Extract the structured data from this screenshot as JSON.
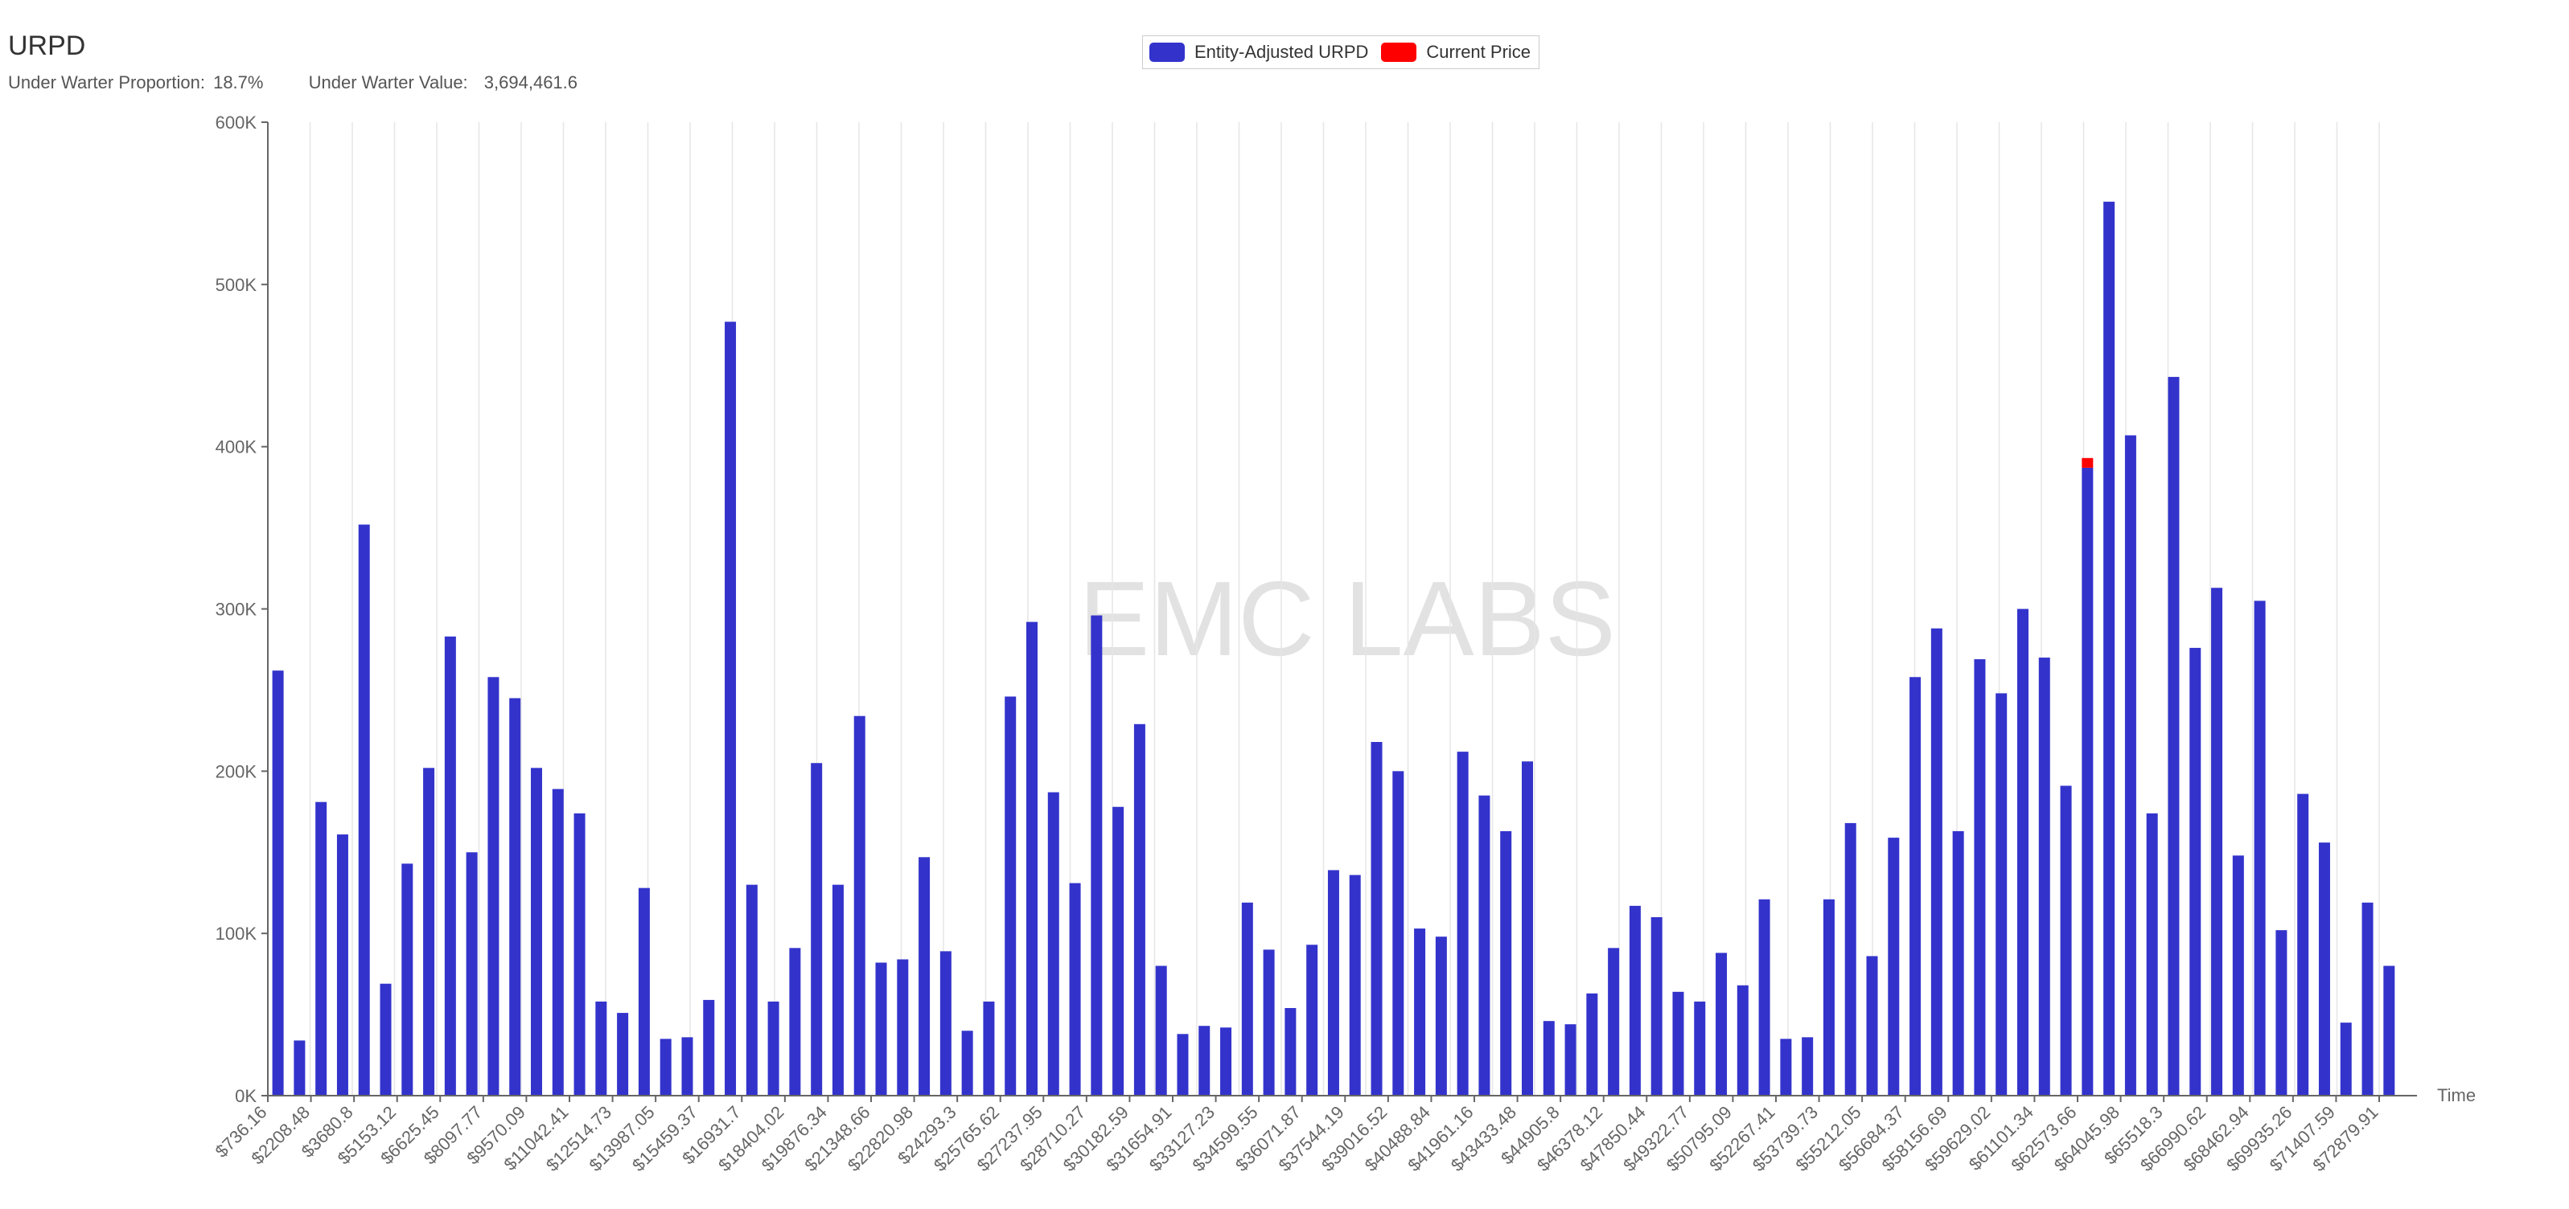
{
  "header": {
    "title": "URPD",
    "under_water_proportion_label": "Under Warter Proportion:",
    "under_water_proportion_value": "18.7%",
    "under_water_value_label": "Under Warter Value:",
    "under_water_value_value": "3,694,461.6"
  },
  "watermark": "EMC LABS",
  "colors": {
    "series": "#3333cc",
    "current_price": "#ff0000",
    "axis": "#666666",
    "grid": "#e6e6e6"
  },
  "legend": {
    "items": [
      {
        "label": "Entity-Adjusted URPD",
        "color": "#3333cc"
      },
      {
        "label": "Current Price",
        "color": "#ff0000"
      }
    ],
    "placement": "top-center"
  },
  "chart_data": {
    "type": "bar",
    "xlabel": "Time",
    "ylabel": "",
    "ylim": [
      0,
      600000
    ],
    "yticks": [
      {
        "value": 0,
        "label": "0K"
      },
      {
        "value": 100000,
        "label": "100K"
      },
      {
        "value": 200000,
        "label": "200K"
      },
      {
        "value": 300000,
        "label": "300K"
      },
      {
        "value": 400000,
        "label": "400K"
      },
      {
        "value": 500000,
        "label": "500K"
      },
      {
        "value": 600000,
        "label": "600K"
      }
    ],
    "grid": "vertical",
    "x_tick_labels": [
      "$736.16",
      "$2208.48",
      "$3680.8",
      "$5153.12",
      "$6625.45",
      "$8097.77",
      "$9570.09",
      "$11042.41",
      "$12514.73",
      "$13987.05",
      "$15459.37",
      "$16931.7",
      "$18404.02",
      "$19876.34",
      "$21348.66",
      "$22820.98",
      "$24293.3",
      "$25765.62",
      "$27237.95",
      "$28710.27",
      "$30182.59",
      "$31654.91",
      "$33127.23",
      "$34599.55",
      "$36071.87",
      "$37544.19",
      "$39016.52",
      "$40488.84",
      "$41961.16",
      "$43433.48",
      "$44905.8",
      "$46378.12",
      "$47850.44",
      "$49322.77",
      "$50795.09",
      "$52267.41",
      "$53739.73",
      "$55212.05",
      "$56684.37",
      "$58156.69",
      "$59629.02",
      "$61101.34",
      "$62573.66",
      "$64045.98",
      "$65518.3",
      "$66990.62",
      "$68462.94",
      "$69935.26",
      "$71407.59",
      "$72879.91"
    ],
    "series": [
      {
        "name": "Entity-Adjusted URPD",
        "values": [
          262000,
          34000,
          181000,
          161000,
          352000,
          69000,
          143000,
          202000,
          283000,
          150000,
          258000,
          245000,
          202000,
          189000,
          174000,
          58000,
          51000,
          128000,
          35000,
          36000,
          59000,
          477000,
          130000,
          58000,
          91000,
          205000,
          130000,
          234000,
          82000,
          84000,
          147000,
          89000,
          40000,
          58000,
          246000,
          292000,
          187000,
          131000,
          296000,
          178000,
          229000,
          80000,
          38000,
          43000,
          42000,
          119000,
          90000,
          54000,
          93000,
          139000,
          136000,
          218000,
          200000,
          103000,
          98000,
          212000,
          185000,
          163000,
          206000,
          46000,
          44000,
          63000,
          91000,
          117000,
          110000,
          64000,
          58000,
          88000,
          68000,
          121000,
          35000,
          36000,
          121000,
          168000,
          86000,
          159000,
          258000,
          288000,
          163000,
          269000,
          248000,
          300000,
          270000,
          191000,
          387000,
          551000,
          407000,
          174000,
          443000,
          276000,
          313000,
          148000,
          305000,
          102000,
          186000,
          156000,
          45000,
          119000,
          80000
        ]
      },
      {
        "name": "Current Price",
        "values": [
          0,
          0,
          0,
          0,
          0,
          0,
          0,
          0,
          0,
          0,
          0,
          0,
          0,
          0,
          0,
          0,
          0,
          0,
          0,
          0,
          0,
          0,
          0,
          0,
          0,
          0,
          0,
          0,
          0,
          0,
          0,
          0,
          0,
          0,
          0,
          0,
          0,
          0,
          0,
          0,
          0,
          0,
          0,
          0,
          0,
          0,
          0,
          0,
          0,
          0,
          0,
          0,
          0,
          0,
          0,
          0,
          0,
          0,
          0,
          0,
          0,
          0,
          0,
          0,
          0,
          0,
          0,
          0,
          0,
          0,
          0,
          0,
          0,
          0,
          0,
          0,
          0,
          0,
          0,
          0,
          0,
          0,
          0,
          0,
          6000,
          0,
          0,
          0,
          0,
          0,
          0,
          0,
          0,
          0,
          0,
          0,
          0,
          0,
          0
        ]
      }
    ]
  }
}
